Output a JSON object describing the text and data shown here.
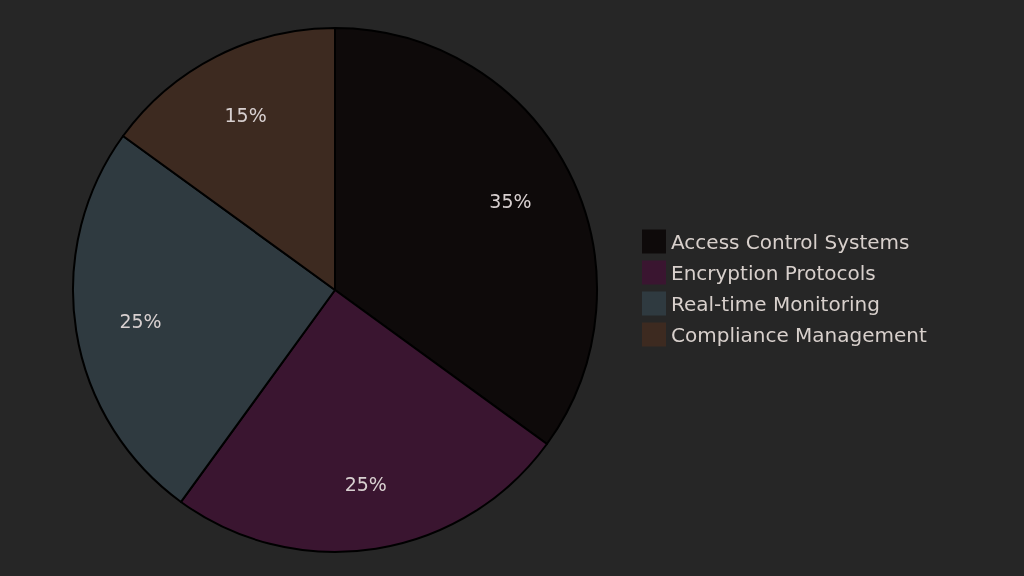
{
  "chart_data": {
    "type": "pie",
    "categories": [
      "Access Control Systems",
      "Encryption Protocols",
      "Real-time Monitoring",
      "Compliance Management"
    ],
    "values": [
      35,
      25,
      25,
      15
    ],
    "colors": [
      "#0e0a0a",
      "#3a1530",
      "#2f3a40",
      "#3d2a20"
    ],
    "value_labels": [
      "35%",
      "25%",
      "25%",
      "15%"
    ],
    "legend": "right"
  }
}
